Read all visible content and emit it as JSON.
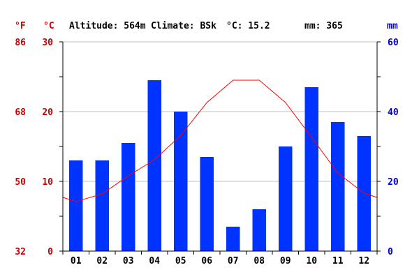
{
  "header": {
    "altitude": "Altitude: 564m",
    "climate": "Climate: BSk",
    "temp": "°C: 15.2",
    "precip": "mm: 365"
  },
  "colors": {
    "temperature": "#ff0000",
    "temperature_axis": "#cc0000",
    "precipitation": "#0033ff",
    "precipitation_axis": "#0000cc",
    "grid": "#c0c0c0"
  },
  "chart_data": {
    "type": "bar",
    "categories": [
      "01",
      "02",
      "03",
      "04",
      "05",
      "06",
      "07",
      "08",
      "09",
      "10",
      "11",
      "12"
    ],
    "series": [
      {
        "chart_type": "bar",
        "axis": "right",
        "values": [
          26,
          26,
          31,
          49,
          40,
          27,
          7,
          12,
          30,
          47,
          37,
          33
        ]
      },
      {
        "chart_type": "line",
        "axis": "left",
        "values": [
          7.1,
          8.2,
          10.8,
          13.1,
          16.6,
          21.3,
          24.5,
          24.5,
          21.3,
          16.3,
          11.2,
          8.3
        ]
      }
    ],
    "temperature_axis": {
      "unit_c": "°C",
      "unit_f": "°F",
      "ylim": [
        0,
        30
      ],
      "ticks_c": [
        "0",
        "10",
        "20",
        "30"
      ],
      "ticks_f": [
        "32",
        "50",
        "68",
        "86"
      ]
    },
    "precipitation_axis": {
      "unit": "mm",
      "ylim": [
        0,
        60
      ],
      "ticks": [
        "0",
        "20",
        "40",
        "60"
      ]
    },
    "grid": true
  }
}
